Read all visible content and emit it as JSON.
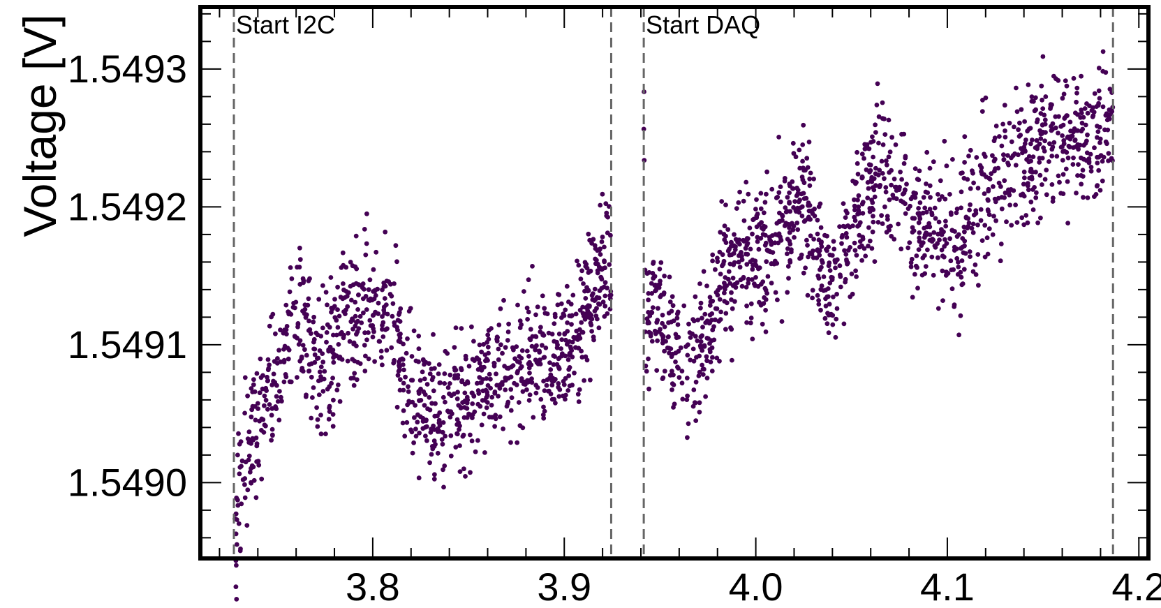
{
  "chart_data": {
    "type": "scatter",
    "title": "",
    "xlabel": "",
    "ylabel": "Voltage [V]",
    "xlim": [
      3.71,
      4.205
    ],
    "ylim": [
      1.548945,
      1.549345
    ],
    "x_ticks": [
      {
        "value": 3.8,
        "label": "3.8"
      },
      {
        "value": 3.9,
        "label": "3.9"
      },
      {
        "value": 4.0,
        "label": "4.0"
      },
      {
        "value": 4.1,
        "label": "4.1"
      },
      {
        "value": 4.2,
        "label": "4.2"
      }
    ],
    "y_ticks": [
      {
        "value": 1.549,
        "label": "1.5490"
      },
      {
        "value": 1.5491,
        "label": "1.5491"
      },
      {
        "value": 1.5492,
        "label": "1.5492"
      },
      {
        "value": 1.5493,
        "label": "1.5493"
      }
    ],
    "grid": false,
    "point_color": "#440154",
    "vlines": [
      {
        "x": 3.7275,
        "label": "Start I2C"
      },
      {
        "x": 3.9245,
        "label": ""
      },
      {
        "x": 3.9415,
        "label": "Start DAQ"
      },
      {
        "x": 4.1865,
        "label": ""
      }
    ],
    "vline_color": "#666666",
    "series": [
      {
        "segments": [
          {
            "x_start": 3.728,
            "x_end": 3.9245,
            "trend": [
              [
                3.728,
                1.54896
              ],
              [
                3.734,
                1.54902
              ],
              [
                3.74,
                1.54905
              ],
              [
                3.748,
                1.54907
              ],
              [
                3.756,
                1.5491
              ],
              [
                3.762,
                1.54912
              ],
              [
                3.768,
                1.54909
              ],
              [
                3.775,
                1.54908
              ],
              [
                3.782,
                1.54911
              ],
              [
                3.79,
                1.54912
              ],
              [
                3.798,
                1.54913
              ],
              [
                3.806,
                1.54912
              ],
              [
                3.812,
                1.54911
              ],
              [
                3.818,
                1.54907
              ],
              [
                3.826,
                1.54906
              ],
              [
                3.834,
                1.54904
              ],
              [
                3.842,
                1.54906
              ],
              [
                3.85,
                1.54906
              ],
              [
                3.858,
                1.54907
              ],
              [
                3.866,
                1.54908
              ],
              [
                3.874,
                1.54909
              ],
              [
                3.882,
                1.5491
              ],
              [
                3.89,
                1.54909
              ],
              [
                3.898,
                1.5491
              ],
              [
                3.906,
                1.54911
              ],
              [
                3.914,
                1.54914
              ],
              [
                3.924,
                1.54916
              ]
            ],
            "spread": 2.5e-05
          },
          {
            "x_start": 3.9415,
            "x_end": 4.1865,
            "trend": [
              [
                3.942,
                1.54913
              ],
              [
                3.95,
                1.54912
              ],
              [
                3.958,
                1.54909
              ],
              [
                3.966,
                1.54909
              ],
              [
                3.974,
                1.5491
              ],
              [
                3.982,
                1.54914
              ],
              [
                3.99,
                1.54916
              ],
              [
                3.998,
                1.54917
              ],
              [
                4.006,
                1.54917
              ],
              [
                4.014,
                1.54918
              ],
              [
                4.022,
                1.54921
              ],
              [
                4.028,
                1.5492
              ],
              [
                4.034,
                1.54916
              ],
              [
                4.04,
                1.54915
              ],
              [
                4.046,
                1.54917
              ],
              [
                4.054,
                1.54919
              ],
              [
                4.06,
                1.54921
              ],
              [
                4.068,
                1.54923
              ],
              [
                4.076,
                1.54922
              ],
              [
                4.082,
                1.54919
              ],
              [
                4.09,
                1.54919
              ],
              [
                4.098,
                1.54918
              ],
              [
                4.106,
                1.54917
              ],
              [
                4.112,
                1.54919
              ],
              [
                4.12,
                1.54921
              ],
              [
                4.128,
                1.54922
              ],
              [
                4.136,
                1.54923
              ],
              [
                4.144,
                1.54924
              ],
              [
                4.152,
                1.54925
              ],
              [
                4.16,
                1.54925
              ],
              [
                4.168,
                1.54925
              ],
              [
                4.176,
                1.54925
              ],
              [
                4.186,
                1.54926
              ]
            ],
            "spread": 2.5e-05
          }
        ]
      }
    ]
  }
}
